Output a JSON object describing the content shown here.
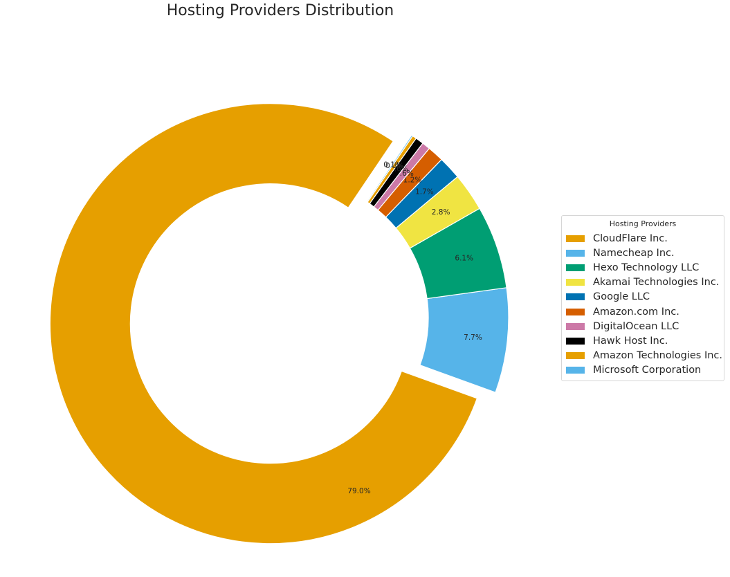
{
  "chart_data": {
    "type": "pie",
    "title": "Hosting Providers Distribution",
    "legend": {
      "title": "Hosting Providers",
      "placement": "right"
    },
    "slices": [
      {
        "label": "CloudFlare Inc.",
        "percent_label": "79.0%",
        "value": 79.0,
        "color": "#E69F00",
        "exploded": true
      },
      {
        "label": "Namecheap Inc.",
        "percent_label": "7.7%",
        "value": 7.7,
        "color": "#56B4E9",
        "exploded": false
      },
      {
        "label": "Hexo Technology LLC",
        "percent_label": "6.1%",
        "value": 6.1,
        "color": "#009E73",
        "exploded": false
      },
      {
        "label": "Akamai Technologies Inc.",
        "percent_label": "2.8%",
        "value": 2.8,
        "color": "#F0E442",
        "exploded": false
      },
      {
        "label": "Google LLC",
        "percent_label": "1.7%",
        "value": 1.7,
        "color": "#0072B2",
        "exploded": false
      },
      {
        "label": "Amazon.com Inc.",
        "percent_label": "1.2%",
        "value": 1.2,
        "color": "#D55E00",
        "exploded": false
      },
      {
        "label": "DigitalOcean LLC",
        "percent_label": "0.6%",
        "value": 0.6,
        "color": "#CC79A7",
        "exploded": false
      },
      {
        "label": "Hawk Host Inc.",
        "percent_label": "0.6%",
        "value": 0.6,
        "color": "#000000",
        "exploded": false
      },
      {
        "label": "Amazon Technologies Inc.",
        "percent_label": "0.3%",
        "value": 0.3,
        "color": "#E69F00",
        "exploded": false
      },
      {
        "label": "Microsoft Corporation",
        "percent_label": "0.1%",
        "value": 0.1,
        "color": "#56B4E9",
        "exploded": false
      }
    ]
  }
}
